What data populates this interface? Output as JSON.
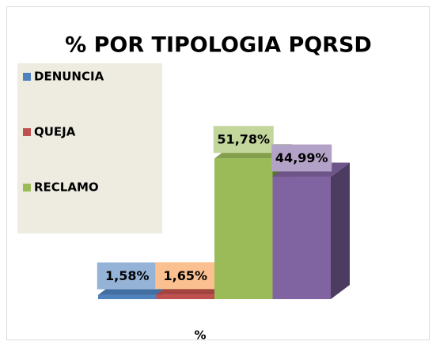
{
  "chart_data": {
    "type": "bar3d",
    "title": "% POR TIPOLOGIA PQRSD",
    "categories": [
      "%"
    ],
    "series": [
      {
        "name": "DENUNCIA",
        "color": "#4f81bd",
        "label_color": "#95b3d7",
        "values": [
          1.58
        ],
        "value_labels": [
          "1,58%"
        ]
      },
      {
        "name": "QUEJA",
        "color": "#c0504d",
        "label_color": "#fac090",
        "values": [
          1.65
        ],
        "value_labels": [
          "1,65%"
        ]
      },
      {
        "name": "RECLAMO",
        "color": "#9bbb59",
        "label_color": "#c3d69b",
        "values": [
          51.78
        ],
        "value_labels": [
          "51,78%"
        ]
      },
      {
        "color": "#8064a2",
        "label_color": "#b3a2c7",
        "values": [
          44.99
        ],
        "value_labels": [
          "44,99%"
        ]
      }
    ],
    "ylim": [
      0,
      60
    ],
    "grid": false,
    "legend": "left"
  }
}
